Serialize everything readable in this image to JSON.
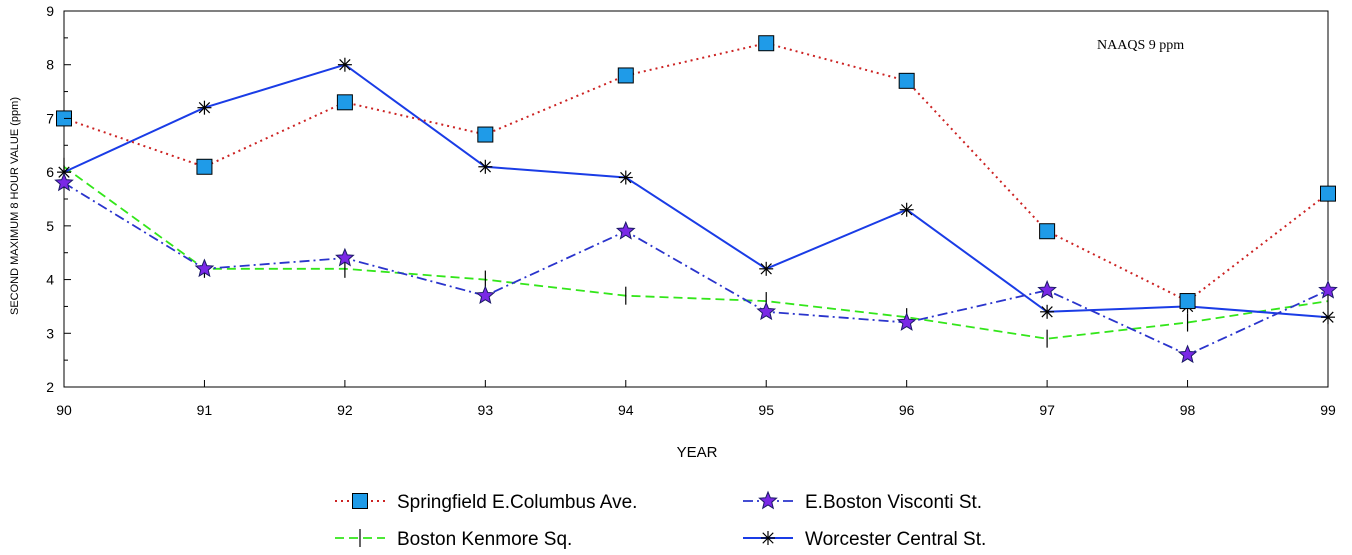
{
  "chart_data": {
    "type": "line",
    "xlabel": "YEAR",
    "ylabel": "SECOND MAXIMUM 8 HOUR VALUE (ppm)",
    "x": [
      "90",
      "91",
      "92",
      "93",
      "94",
      "95",
      "96",
      "97",
      "98",
      "99"
    ],
    "xlim": [
      90,
      99
    ],
    "ylim": [
      2,
      9
    ],
    "yticks": [
      "2",
      "3",
      "4",
      "5",
      "6",
      "7",
      "8",
      "9"
    ],
    "grid": false,
    "annotation": "NAAQS 9 ppm",
    "legend_position": "bottom-center",
    "series": [
      {
        "name": "Springfield E.Columbus Ave.",
        "values": [
          7.0,
          6.1,
          7.3,
          6.7,
          7.8,
          8.4,
          7.7,
          4.9,
          3.6,
          5.6
        ],
        "color": "#cc2222",
        "line_style": "dotted",
        "marker": "square",
        "marker_color": "#1f9be8"
      },
      {
        "name": "E.Boston Visconti St.",
        "values": [
          5.8,
          4.2,
          4.4,
          3.7,
          4.9,
          3.4,
          3.2,
          3.8,
          2.6,
          3.8
        ],
        "color": "#2a34cc",
        "line_style": "dash-dot",
        "marker": "star",
        "marker_color": "#7a28e6"
      },
      {
        "name": "Boston Kenmore Sq.",
        "values": [
          6.1,
          4.2,
          4.2,
          4.0,
          3.7,
          3.6,
          3.3,
          2.9,
          3.2,
          3.6
        ],
        "color": "#33e61a",
        "line_style": "dashed",
        "marker": "vertical-tick",
        "marker_color": "#000000"
      },
      {
        "name": "Worcester Central St.",
        "values": [
          6.0,
          7.2,
          8.0,
          6.1,
          5.9,
          4.2,
          5.3,
          3.4,
          3.5,
          3.3
        ],
        "color": "#1a3ce6",
        "line_style": "solid",
        "marker": "asterisk",
        "marker_color": "#000000"
      }
    ]
  }
}
